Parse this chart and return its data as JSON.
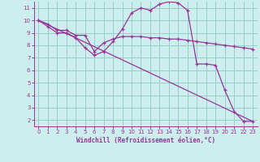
{
  "xlabel": "Windchill (Refroidissement éolien,°C)",
  "bg_color": "#cceeed",
  "line_color": "#993399",
  "grid_color": "#99cccc",
  "xlim": [
    -0.5,
    23.5
  ],
  "ylim": [
    1.5,
    11.5
  ],
  "yticks": [
    2,
    3,
    4,
    5,
    6,
    7,
    8,
    9,
    10,
    11
  ],
  "xticks": [
    0,
    1,
    2,
    3,
    4,
    5,
    6,
    7,
    8,
    9,
    10,
    11,
    12,
    13,
    14,
    15,
    16,
    17,
    18,
    19,
    20,
    21,
    22,
    23
  ],
  "series1_x": [
    0,
    1,
    2,
    3,
    4,
    5,
    6,
    7,
    8,
    9,
    10,
    11,
    12,
    13,
    14,
    15,
    16,
    17,
    18,
    19,
    20,
    21,
    22,
    23
  ],
  "series1_y": [
    10.0,
    9.7,
    9.2,
    9.2,
    8.8,
    8.8,
    7.5,
    8.2,
    8.5,
    8.7,
    8.7,
    8.7,
    8.6,
    8.6,
    8.5,
    8.5,
    8.4,
    8.3,
    8.2,
    8.1,
    8.0,
    7.9,
    7.8,
    7.7
  ],
  "series2_x": [
    0,
    1,
    2,
    3,
    4,
    5,
    6,
    7,
    8,
    9,
    10,
    11,
    12,
    13,
    14,
    15,
    16,
    17,
    18,
    19,
    20,
    21,
    22,
    23
  ],
  "series2_y": [
    10.0,
    9.5,
    9.0,
    9.0,
    8.6,
    7.8,
    7.2,
    7.5,
    8.3,
    9.3,
    10.6,
    11.0,
    10.8,
    11.3,
    11.5,
    11.4,
    10.8,
    6.5,
    6.5,
    6.4,
    4.4,
    2.7,
    1.9,
    1.9
  ],
  "series3_x": [
    0,
    23
  ],
  "series3_y": [
    10.0,
    1.9
  ]
}
